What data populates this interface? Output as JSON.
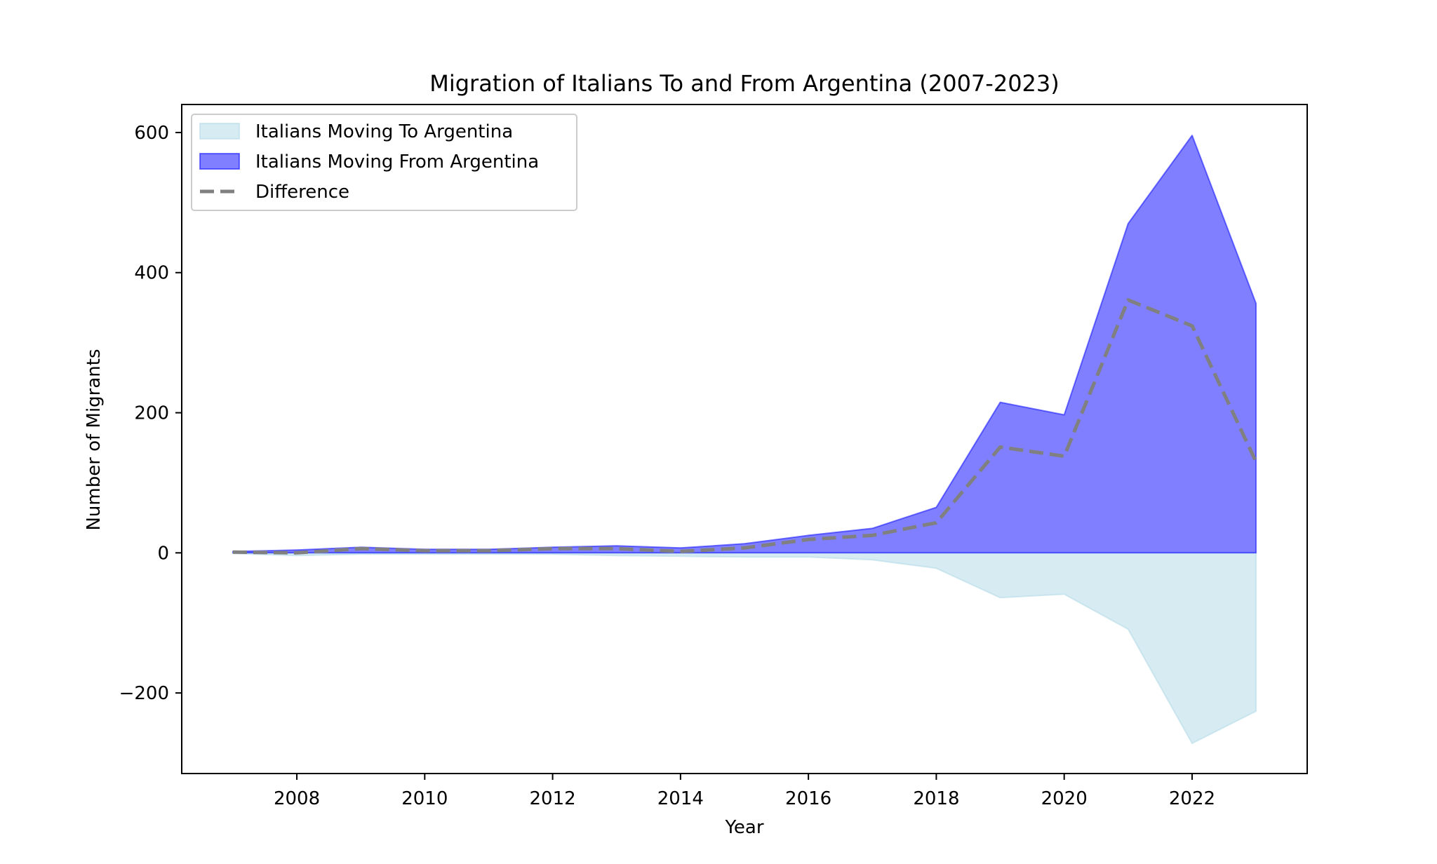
{
  "chart_data": {
    "type": "area",
    "title": "Migration of Italians To and From Argentina (2007-2023)",
    "xlabel": "Year",
    "ylabel": "Number of Migrants",
    "x": [
      2007,
      2008,
      2009,
      2010,
      2011,
      2012,
      2013,
      2014,
      2015,
      2016,
      2017,
      2018,
      2019,
      2020,
      2021,
      2022,
      2023
    ],
    "series": [
      {
        "name": "Italians Moving To Argentina",
        "kind": "area",
        "color": "#add8e6",
        "opacity": 0.5,
        "values": [
          -1,
          -4,
          -2,
          -2,
          -2,
          -2,
          -4,
          -5,
          -6,
          -6,
          -10,
          -22,
          -64,
          -59,
          -109,
          -272,
          -226
        ]
      },
      {
        "name": "Italians Moving From Argentina",
        "kind": "area",
        "color": "#0000ff",
        "opacity": 0.5,
        "values": [
          2,
          4,
          8,
          5,
          5,
          8,
          10,
          7,
          13,
          25,
          35,
          65,
          215,
          197,
          470,
          596,
          356
        ]
      },
      {
        "name": "Difference",
        "kind": "line",
        "color": "#808080",
        "dash": "dashed",
        "values": [
          1,
          0,
          6,
          3,
          3,
          6,
          6,
          2,
          7,
          19,
          25,
          43,
          151,
          138,
          361,
          324,
          130
        ]
      }
    ],
    "xticks": [
      "2008",
      "2010",
      "2012",
      "2014",
      "2016",
      "2018",
      "2020",
      "2022"
    ],
    "yticks": [
      "−200",
      "0",
      "200",
      "400",
      "600"
    ],
    "xlim": [
      2006.2,
      2023.8
    ],
    "ylim": [
      -315,
      640
    ],
    "legend_position": "top-left",
    "grid": false
  }
}
